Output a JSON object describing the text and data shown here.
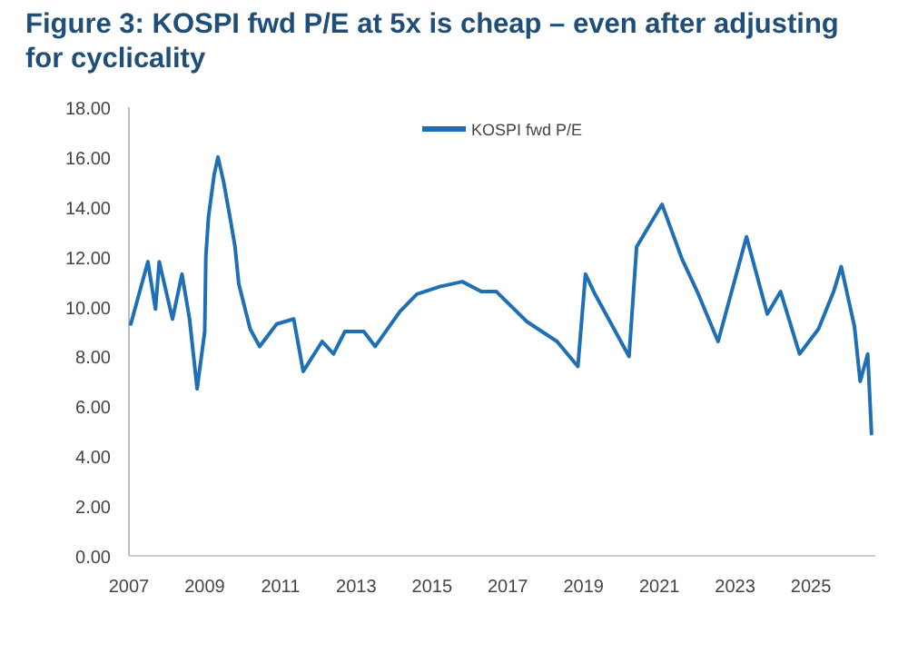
{
  "chart_data": {
    "type": "line",
    "title": "Figure 3: KOSPI fwd P/E at 5x is cheap – even after adjusting for cyclicality",
    "x": [
      2007.05,
      2007.5,
      2007.7,
      2007.8,
      2008.15,
      2008.4,
      2008.6,
      2008.8,
      2009.0,
      2009.03,
      2009.1,
      2009.25,
      2009.35,
      2009.5,
      2009.7,
      2009.8,
      2009.9,
      2010.2,
      2010.45,
      2010.9,
      2011.35,
      2011.6,
      2012.1,
      2012.4,
      2012.7,
      2013.2,
      2013.5,
      2014.15,
      2014.6,
      2015.2,
      2015.8,
      2016.3,
      2016.7,
      2017.5,
      2018.3,
      2018.85,
      2019.05,
      2019.3,
      2020.2,
      2020.4,
      2021.07,
      2021.6,
      2022.0,
      2022.55,
      2023.3,
      2023.85,
      2024.2,
      2024.7,
      2025.2,
      2025.6,
      2025.8,
      2026.15,
      2026.3,
      2026.5,
      2026.6
    ],
    "series": [
      {
        "name": "KOSPI fwd P/E",
        "color": "#1f6fb5",
        "values": [
          9.3,
          11.8,
          9.9,
          11.8,
          9.5,
          11.3,
          9.5,
          6.7,
          9.0,
          12.0,
          13.6,
          15.3,
          16.0,
          15.0,
          13.3,
          12.4,
          10.9,
          9.1,
          8.4,
          9.3,
          9.5,
          7.4,
          8.6,
          8.1,
          9.0,
          9.0,
          8.4,
          9.8,
          10.5,
          10.8,
          11.0,
          10.6,
          10.6,
          9.4,
          8.6,
          7.6,
          11.3,
          10.5,
          8.0,
          12.4,
          14.1,
          11.9,
          10.6,
          8.6,
          12.8,
          9.7,
          10.6,
          8.1,
          9.1,
          10.6,
          11.6,
          9.2,
          7.0,
          8.1,
          4.9
        ]
      }
    ],
    "xlim": [
      2007,
      2026.7
    ],
    "xticks": [
      2007,
      2009,
      2011,
      2013,
      2015,
      2017,
      2019,
      2021,
      2023,
      2025
    ],
    "ylim": [
      0,
      18
    ],
    "yticks": [
      {
        "value": 0,
        "label": "0.00"
      },
      {
        "value": 2,
        "label": "2.00"
      },
      {
        "value": 4,
        "label": "4.00"
      },
      {
        "value": 6,
        "label": "6.00"
      },
      {
        "value": 8,
        "label": "8.00"
      },
      {
        "value": 10,
        "label": "10.00"
      },
      {
        "value": 12,
        "label": "12.00"
      },
      {
        "value": 14,
        "label": "14.00"
      },
      {
        "value": 16,
        "label": "16.00"
      },
      {
        "value": 18,
        "label": "18.00"
      }
    ],
    "grid": false,
    "legend": "top",
    "line_style": "solid",
    "marker": "none"
  }
}
